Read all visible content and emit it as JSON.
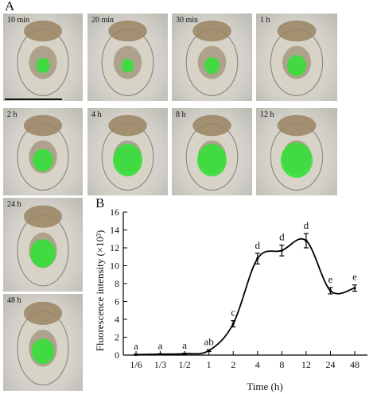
{
  "figure": {
    "panel_a_letter": "A",
    "panel_b_letter": "B"
  },
  "micrographs": [
    {
      "label": "10 min",
      "green": 0.15
    },
    {
      "label": "20 min",
      "green": 0.1
    },
    {
      "label": "30 min",
      "green": 0.2
    },
    {
      "label": "1 h",
      "green": 0.35
    },
    {
      "label": "2 h",
      "green": 0.4
    },
    {
      "label": "4 h",
      "green": 0.75
    },
    {
      "label": "8 h",
      "green": 0.75
    },
    {
      "label": "12 h",
      "green": 0.85
    },
    {
      "label": "24 h",
      "green": 0.6
    },
    {
      "label": "48 h",
      "green": 0.5
    }
  ],
  "colors": {
    "fluorescence": "#35e03a",
    "specimen_body": "#9a8462",
    "line": "#000000"
  },
  "chart_data": {
    "type": "line",
    "xlabel": "Time (h)",
    "ylabel": "Fluorescence intensity (×10³)",
    "categories": [
      "1/6",
      "1/3",
      "1/2",
      "1",
      "2",
      "4",
      "8",
      "12",
      "24",
      "48"
    ],
    "values": [
      0.05,
      0.1,
      0.15,
      0.5,
      3.5,
      10.8,
      11.7,
      12.8,
      7.2,
      7.5
    ],
    "errors": [
      0.05,
      0.05,
      0.05,
      0.1,
      0.35,
      0.6,
      0.6,
      0.8,
      0.35,
      0.35
    ],
    "letters": [
      "a",
      "a",
      "a",
      "ab",
      "c",
      "d",
      "d",
      "d",
      "e",
      "e"
    ],
    "ylim": [
      0,
      16
    ],
    "yticks": [
      "0",
      "2",
      "4",
      "6",
      "8",
      "10",
      "12",
      "14",
      "16"
    ],
    "grid": false,
    "legend": "none"
  }
}
